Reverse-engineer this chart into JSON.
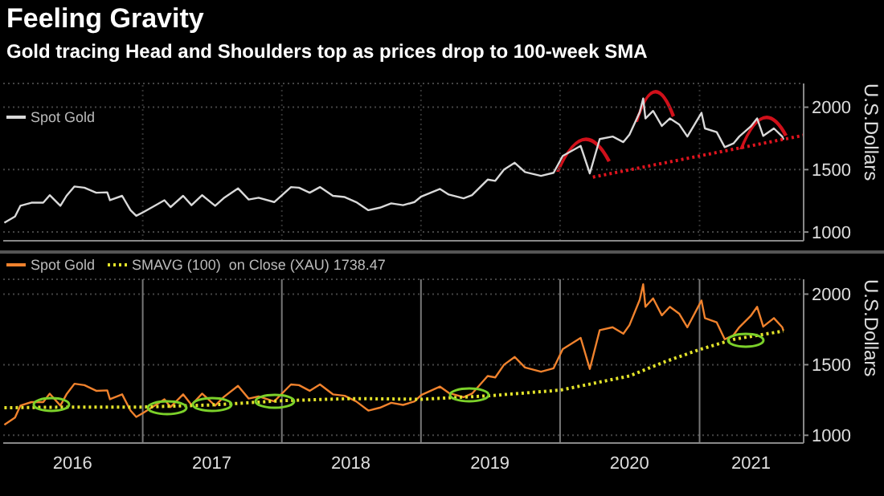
{
  "chart_data": [
    {
      "type": "line",
      "title": "Feeling Gravity",
      "subtitle": "Gold tracing Head and Shoulders top as prices drop to 100-week SMA",
      "ylabel": "U.S.Dollars",
      "xlim": [
        "2016-01-01",
        "2021-10-01"
      ],
      "ylim": [
        930,
        2190
      ],
      "yticks": [
        1000,
        1500,
        2000
      ],
      "xticks": [
        {
          "value": "2017-01-01",
          "label": null
        },
        {
          "value": "2018-01-01",
          "label": null
        },
        {
          "value": "2019-01-01",
          "label": null
        },
        {
          "value": "2020-01-01",
          "label": null
        },
        {
          "value": "2021-01-01",
          "label": null
        }
      ],
      "tick_labels": "y",
      "grid": true,
      "legend": "top left",
      "x": [
        "2016-01-04",
        "2016-02-01",
        "2016-02-15",
        "2016-03-15",
        "2016-04-15",
        "2016-05-02",
        "2016-05-30",
        "2016-06-15",
        "2016-07-06",
        "2016-08-01",
        "2016-09-01",
        "2016-09-30",
        "2016-10-07",
        "2016-11-08",
        "2016-11-30",
        "2016-12-15",
        "2017-01-03",
        "2017-02-01",
        "2017-02-27",
        "2017-03-15",
        "2017-04-17",
        "2017-05-09",
        "2017-06-06",
        "2017-07-10",
        "2017-08-01",
        "2017-09-08",
        "2017-10-06",
        "2017-11-01",
        "2017-12-12",
        "2018-01-25",
        "2018-02-15",
        "2018-03-15",
        "2018-04-11",
        "2018-05-15",
        "2018-06-15",
        "2018-07-15",
        "2018-08-16",
        "2018-09-15",
        "2018-10-15",
        "2018-11-15",
        "2018-12-15",
        "2019-01-02",
        "2019-02-20",
        "2019-03-15",
        "2019-04-23",
        "2019-05-15",
        "2019-06-25",
        "2019-07-15",
        "2019-08-07",
        "2019-09-04",
        "2019-10-01",
        "2019-11-12",
        "2019-12-15",
        "2020-01-08",
        "2020-02-24",
        "2020-03-19",
        "2020-04-14",
        "2020-05-18",
        "2020-06-15",
        "2020-07-01",
        "2020-07-28",
        "2020-08-06",
        "2020-08-12",
        "2020-09-01",
        "2020-09-24",
        "2020-10-15",
        "2020-11-09",
        "2020-11-30",
        "2021-01-06",
        "2021-01-15",
        "2021-02-15",
        "2021-03-08",
        "2021-03-31",
        "2021-04-15",
        "2021-05-15",
        "2021-06-01",
        "2021-06-17",
        "2021-07-15",
        "2021-08-06",
        "2021-08-09"
      ],
      "series": [
        {
          "name": "Spot Gold",
          "color": "#d9d9d9",
          "values": [
            1075,
            1125,
            1210,
            1235,
            1235,
            1295,
            1210,
            1290,
            1365,
            1355,
            1315,
            1318,
            1255,
            1290,
            1175,
            1130,
            1160,
            1210,
            1255,
            1200,
            1290,
            1215,
            1295,
            1210,
            1270,
            1350,
            1260,
            1275,
            1240,
            1360,
            1355,
            1315,
            1360,
            1290,
            1280,
            1240,
            1175,
            1195,
            1230,
            1215,
            1240,
            1285,
            1345,
            1300,
            1270,
            1295,
            1420,
            1410,
            1500,
            1555,
            1480,
            1450,
            1475,
            1610,
            1690,
            1470,
            1745,
            1765,
            1720,
            1780,
            1960,
            2070,
            1910,
            1970,
            1850,
            1910,
            1860,
            1765,
            1955,
            1830,
            1800,
            1680,
            1710,
            1765,
            1845,
            1910,
            1770,
            1830,
            1765,
            1740
          ]
        },
        {
          "type": "line",
          "color": "#e0141e",
          "line_style": "dotted",
          "x": [
            "2020-03-27",
            "2021-10-01"
          ],
          "values": [
            1440,
            1775
          ]
        }
      ]
    },
    {
      "type": "line",
      "ylabel": "U.S.Dollars",
      "xlim": [
        "2016-01-01",
        "2021-10-01"
      ],
      "ylim": [
        945,
        2105
      ],
      "yticks": [
        1000,
        1500,
        2000
      ],
      "xticks": [
        {
          "value": "2016-07-01",
          "label": "2016"
        },
        {
          "value": "2017-01-01",
          "label": null
        },
        {
          "value": "2017-07-01",
          "label": "2017"
        },
        {
          "value": "2018-01-01",
          "label": null
        },
        {
          "value": "2018-07-01",
          "label": "2018"
        },
        {
          "value": "2019-01-01",
          "label": null
        },
        {
          "value": "2019-07-01",
          "label": "2019"
        },
        {
          "value": "2020-01-01",
          "label": null
        },
        {
          "value": "2020-07-01",
          "label": "2020"
        },
        {
          "value": "2021-01-01",
          "label": null
        },
        {
          "value": "2021-05-16",
          "label": "2021"
        }
      ],
      "grid": true,
      "legend": "top left",
      "x": [
        "2016-01-04",
        "2016-02-01",
        "2016-02-15",
        "2016-03-15",
        "2016-04-15",
        "2016-05-02",
        "2016-05-30",
        "2016-06-15",
        "2016-07-06",
        "2016-08-01",
        "2016-09-01",
        "2016-09-30",
        "2016-10-07",
        "2016-11-08",
        "2016-11-30",
        "2016-12-15",
        "2017-01-03",
        "2017-02-01",
        "2017-02-27",
        "2017-03-15",
        "2017-04-17",
        "2017-05-09",
        "2017-06-06",
        "2017-07-10",
        "2017-08-01",
        "2017-09-08",
        "2017-10-06",
        "2017-11-01",
        "2017-12-12",
        "2018-01-25",
        "2018-02-15",
        "2018-03-15",
        "2018-04-11",
        "2018-05-15",
        "2018-06-15",
        "2018-07-15",
        "2018-08-16",
        "2018-09-15",
        "2018-10-15",
        "2018-11-15",
        "2018-12-15",
        "2019-01-02",
        "2019-02-20",
        "2019-03-15",
        "2019-04-23",
        "2019-05-15",
        "2019-06-25",
        "2019-07-15",
        "2019-08-07",
        "2019-09-04",
        "2019-10-01",
        "2019-11-12",
        "2019-12-15",
        "2020-01-08",
        "2020-02-24",
        "2020-03-19",
        "2020-04-14",
        "2020-05-18",
        "2020-06-15",
        "2020-07-01",
        "2020-07-28",
        "2020-08-06",
        "2020-08-12",
        "2020-09-01",
        "2020-09-24",
        "2020-10-15",
        "2020-11-09",
        "2020-11-30",
        "2021-01-06",
        "2021-01-15",
        "2021-02-15",
        "2021-03-08",
        "2021-03-31",
        "2021-04-15",
        "2021-05-15",
        "2021-06-01",
        "2021-06-17",
        "2021-07-15",
        "2021-08-06",
        "2021-08-09"
      ],
      "series": [
        {
          "name": "Spot Gold",
          "color": "#f0822d",
          "values": [
            1075,
            1125,
            1210,
            1235,
            1235,
            1295,
            1210,
            1290,
            1365,
            1355,
            1315,
            1318,
            1255,
            1290,
            1175,
            1130,
            1160,
            1210,
            1255,
            1200,
            1290,
            1215,
            1295,
            1210,
            1270,
            1350,
            1260,
            1275,
            1240,
            1360,
            1355,
            1315,
            1360,
            1290,
            1280,
            1240,
            1175,
            1195,
            1230,
            1215,
            1240,
            1285,
            1345,
            1300,
            1270,
            1295,
            1420,
            1410,
            1500,
            1555,
            1480,
            1450,
            1475,
            1610,
            1690,
            1470,
            1745,
            1765,
            1720,
            1780,
            1960,
            2070,
            1910,
            1970,
            1850,
            1910,
            1860,
            1765,
            1955,
            1830,
            1800,
            1680,
            1710,
            1765,
            1845,
            1910,
            1770,
            1830,
            1765,
            1740
          ]
        },
        {
          "name": "SMAVG (100)  on Close (XAU) 1738.47",
          "color": "#e3e32a",
          "line_style": "dotted",
          "x": [
            "2016-01-04",
            "2016-07-01",
            "2017-01-03",
            "2017-07-03",
            "2018-01-02",
            "2018-07-02",
            "2019-01-02",
            "2019-07-01",
            "2020-01-02",
            "2020-07-01",
            "2020-10-01",
            "2021-01-04",
            "2021-04-01",
            "2021-08-09"
          ],
          "values": [
            1195,
            1200,
            1200,
            1215,
            1245,
            1260,
            1255,
            1280,
            1320,
            1420,
            1520,
            1610,
            1680,
            1738.47
          ]
        }
      ]
    }
  ]
}
